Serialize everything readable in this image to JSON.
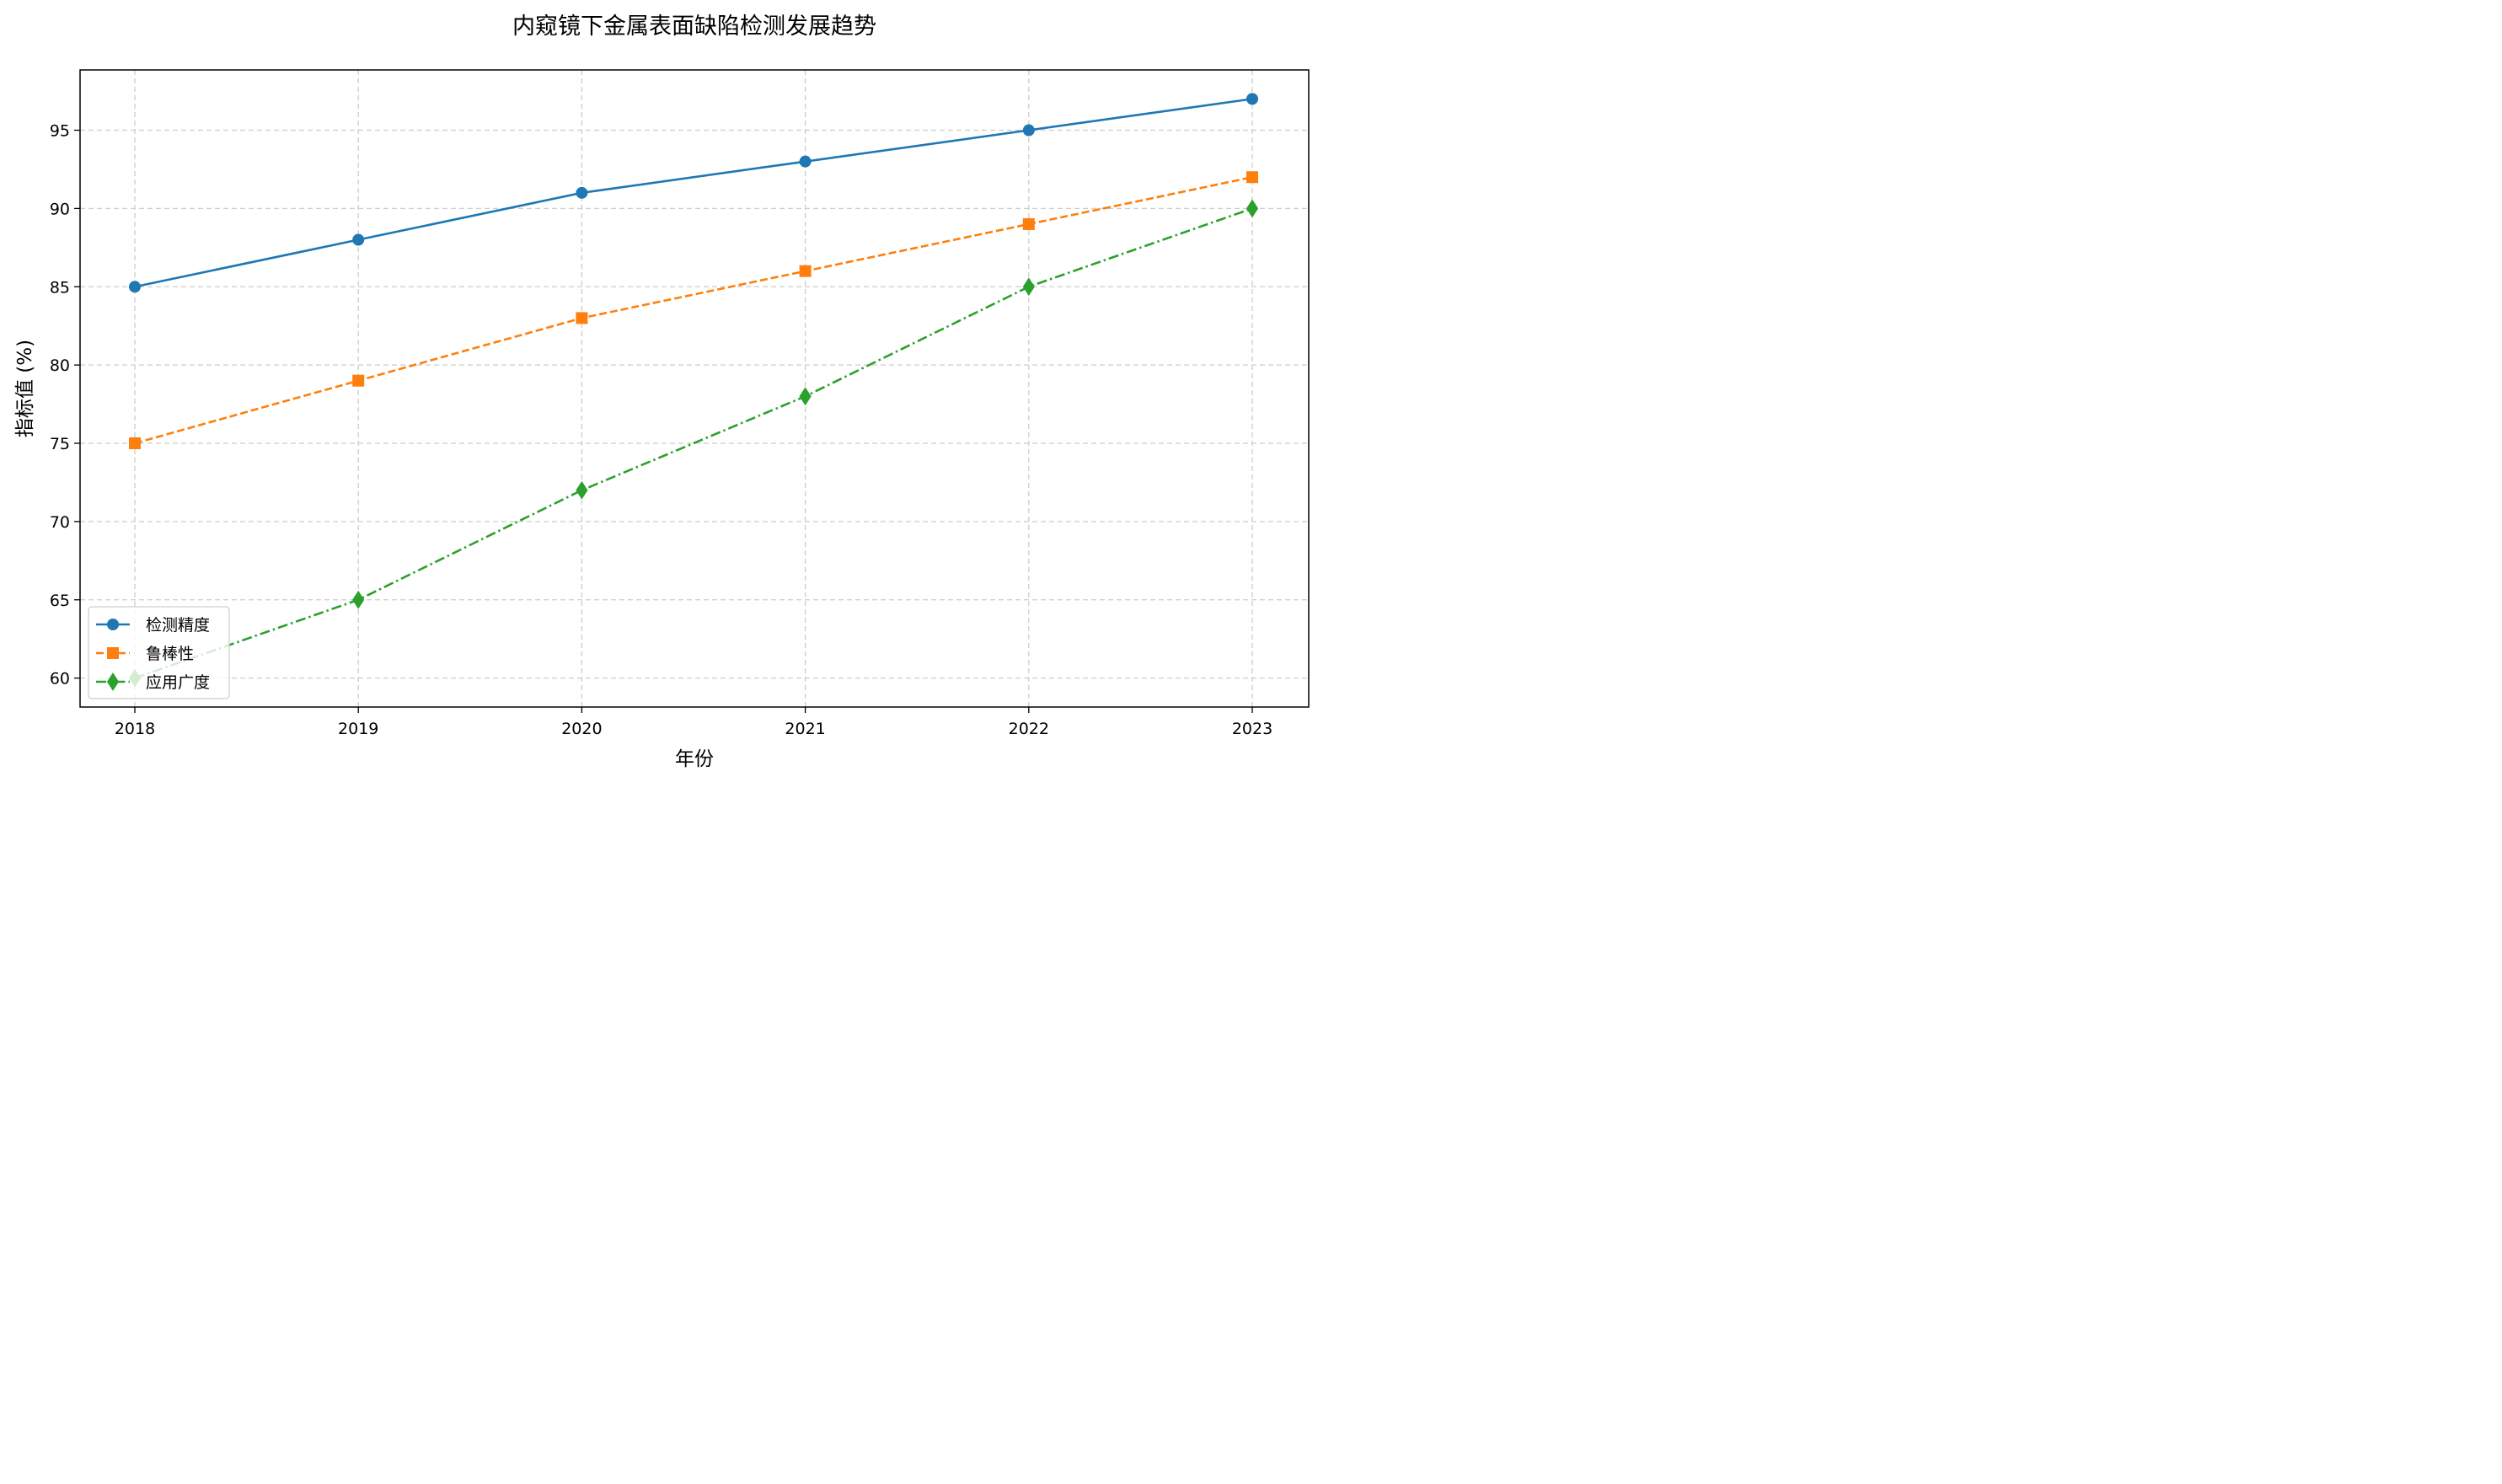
{
  "chart_data": {
    "type": "line",
    "title": "内窥镜下金属表面缺陷检测发展趋势",
    "xlabel": "年份",
    "ylabel": "指标值 (%)",
    "categories": [
      "2018",
      "2019",
      "2020",
      "2021",
      "2022",
      "2023"
    ],
    "y_ticks": [
      60,
      65,
      70,
      75,
      80,
      85,
      90,
      95
    ],
    "ylim": [
      58.15,
      98.85
    ],
    "grid": true,
    "legend_position": "lower-left",
    "series": [
      {
        "name": "检测精度",
        "values": [
          85,
          88,
          91,
          93,
          95,
          97
        ],
        "color": "#1f77b4",
        "marker": "circle",
        "line_style": "solid"
      },
      {
        "name": "鲁棒性",
        "values": [
          75,
          79,
          83,
          86,
          89,
          92
        ],
        "color": "#ff7f0e",
        "marker": "square",
        "line_style": "dashed"
      },
      {
        "name": "应用广度",
        "values": [
          60,
          65,
          72,
          78,
          85,
          90
        ],
        "color": "#2ca02c",
        "marker": "diamond",
        "line_style": "dashdot"
      }
    ]
  }
}
